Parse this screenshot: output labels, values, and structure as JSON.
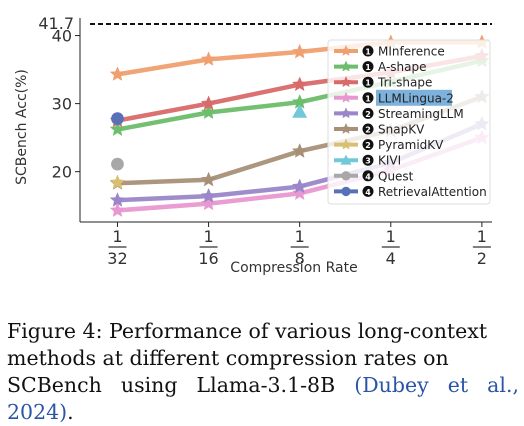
{
  "chart_data": {
    "type": "line",
    "xlabel": "Compression Rate",
    "ylabel": "SCBench Acc(%)",
    "x_ticks": [
      {
        "value": 0.03125,
        "num": "1",
        "den": "32"
      },
      {
        "value": 0.0625,
        "num": "1",
        "den": "16"
      },
      {
        "value": 0.125,
        "num": "1",
        "den": "8"
      },
      {
        "value": 0.25,
        "num": "1",
        "den": "4"
      },
      {
        "value": 0.5,
        "num": "1",
        "den": "2"
      }
    ],
    "xlim": [
      0.0235,
      0.54
    ],
    "ylim": [
      12.6,
      41.7
    ],
    "y_ticks": [
      20,
      30,
      40
    ],
    "reference_line": {
      "y": 41.7,
      "label": "41.7"
    },
    "legend_placement": "right",
    "highlighted_series": "LLMLingua-2",
    "series": [
      {
        "name": "MInference",
        "badge": "1",
        "color": "#f0a070",
        "marker": "star",
        "x": [
          0.03125,
          0.0625,
          0.125,
          0.25,
          0.5
        ],
        "y": [
          34.3,
          36.5,
          37.6,
          39.0,
          39.0
        ]
      },
      {
        "name": "A-shape",
        "badge": "1",
        "color": "#6cbd6c",
        "marker": "star",
        "x": [
          0.03125,
          0.0625,
          0.125,
          0.25,
          0.5
        ],
        "y": [
          26.2,
          28.7,
          30.2,
          33.2,
          36.3
        ]
      },
      {
        "name": "Tri-shape",
        "badge": "1",
        "color": "#d86a6a",
        "marker": "star",
        "x": [
          0.03125,
          0.0625,
          0.125,
          0.25,
          0.5
        ],
        "y": [
          27.5,
          30.0,
          32.8,
          34.6,
          37.0
        ]
      },
      {
        "name": "LLMLingua-2",
        "badge": "1",
        "color": "#e898d0",
        "marker": "star",
        "x": [
          0.03125,
          0.0625,
          0.125,
          0.25,
          0.5
        ],
        "y": [
          14.3,
          15.3,
          16.8,
          20.2,
          25.0
        ]
      },
      {
        "name": "StreamingLLM",
        "badge": "2",
        "color": "#9a86c8",
        "marker": "star",
        "x": [
          0.03125,
          0.0625,
          0.125,
          0.25,
          0.5
        ],
        "y": [
          15.8,
          16.4,
          17.8,
          21.3,
          27.0
        ]
      },
      {
        "name": "SnapKV",
        "badge": "2",
        "color": "#a89078",
        "marker": "star",
        "x": [
          0.03125,
          0.0625,
          0.125,
          0.25,
          0.5
        ],
        "y": [
          18.3,
          18.8,
          23.0,
          26.0,
          31.0
        ]
      },
      {
        "name": "PyramidKV",
        "badge": "2",
        "color": "#d8c070",
        "marker": "star",
        "x": [
          0.03125
        ],
        "y": [
          18.4
        ]
      },
      {
        "name": "KIVI",
        "badge": "3",
        "color": "#70c8d8",
        "marker": "triangle",
        "x": [
          0.125
        ],
        "y": [
          28.8
        ]
      },
      {
        "name": "Quest",
        "badge": "4",
        "color": "#a8a8a8",
        "marker": "circle",
        "x": [
          0.03125
        ],
        "y": [
          21.1
        ]
      },
      {
        "name": "RetrievalAttention",
        "badge": "4",
        "color": "#5870b8",
        "marker": "circle",
        "x": [
          0.03125
        ],
        "y": [
          27.8
        ]
      }
    ]
  },
  "caption": {
    "line1": "Figure 4:  Performance of various long-context",
    "line2": "methods  at  different  compression  rates  on",
    "line3_prefix": "SCBench using Llama-3.1-8B ",
    "line3_cite": "(Dubey et al., 2024)",
    "line3_suffix": "."
  }
}
